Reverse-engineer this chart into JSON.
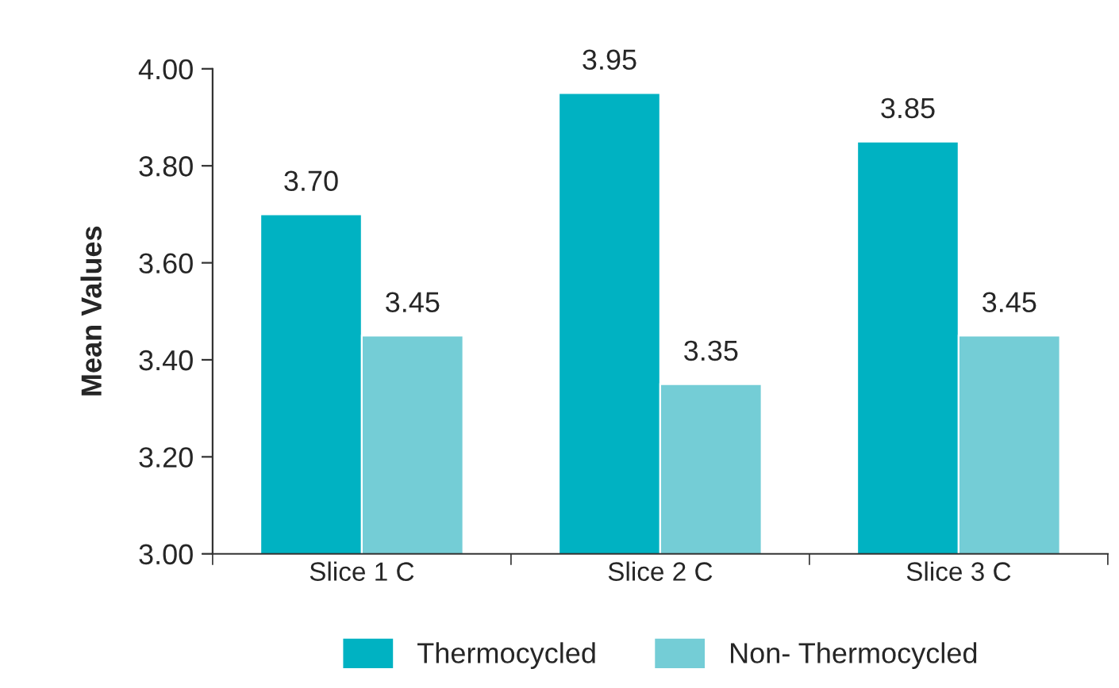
{
  "chart_data": {
    "type": "bar",
    "ylabel": "Mean Values",
    "categories": [
      "Slice 1 C",
      "Slice 2 C",
      "Slice 3 C"
    ],
    "series": [
      {
        "name": "Thermocycled",
        "color": "#00b2c2",
        "values": [
          3.7,
          3.95,
          3.85
        ],
        "value_labels": [
          "3.70",
          "3.95",
          "3.85"
        ]
      },
      {
        "name": "Non- Thermocycled",
        "color": "#74cdd6",
        "values": [
          3.45,
          3.35,
          3.45
        ],
        "value_labels": [
          "3.45",
          "3.35",
          "3.45"
        ]
      }
    ],
    "ylim": [
      3.0,
      4.0
    ],
    "yticks": [
      {
        "value": 3.0,
        "label": "3.00"
      },
      {
        "value": 3.2,
        "label": "3.20"
      },
      {
        "value": 3.4,
        "label": "3.40"
      },
      {
        "value": 3.6,
        "label": "3.60"
      },
      {
        "value": 3.8,
        "label": "3.80"
      },
      {
        "value": 4.0,
        "label": "4.00"
      }
    ],
    "grid": false,
    "legend": "bottom"
  }
}
